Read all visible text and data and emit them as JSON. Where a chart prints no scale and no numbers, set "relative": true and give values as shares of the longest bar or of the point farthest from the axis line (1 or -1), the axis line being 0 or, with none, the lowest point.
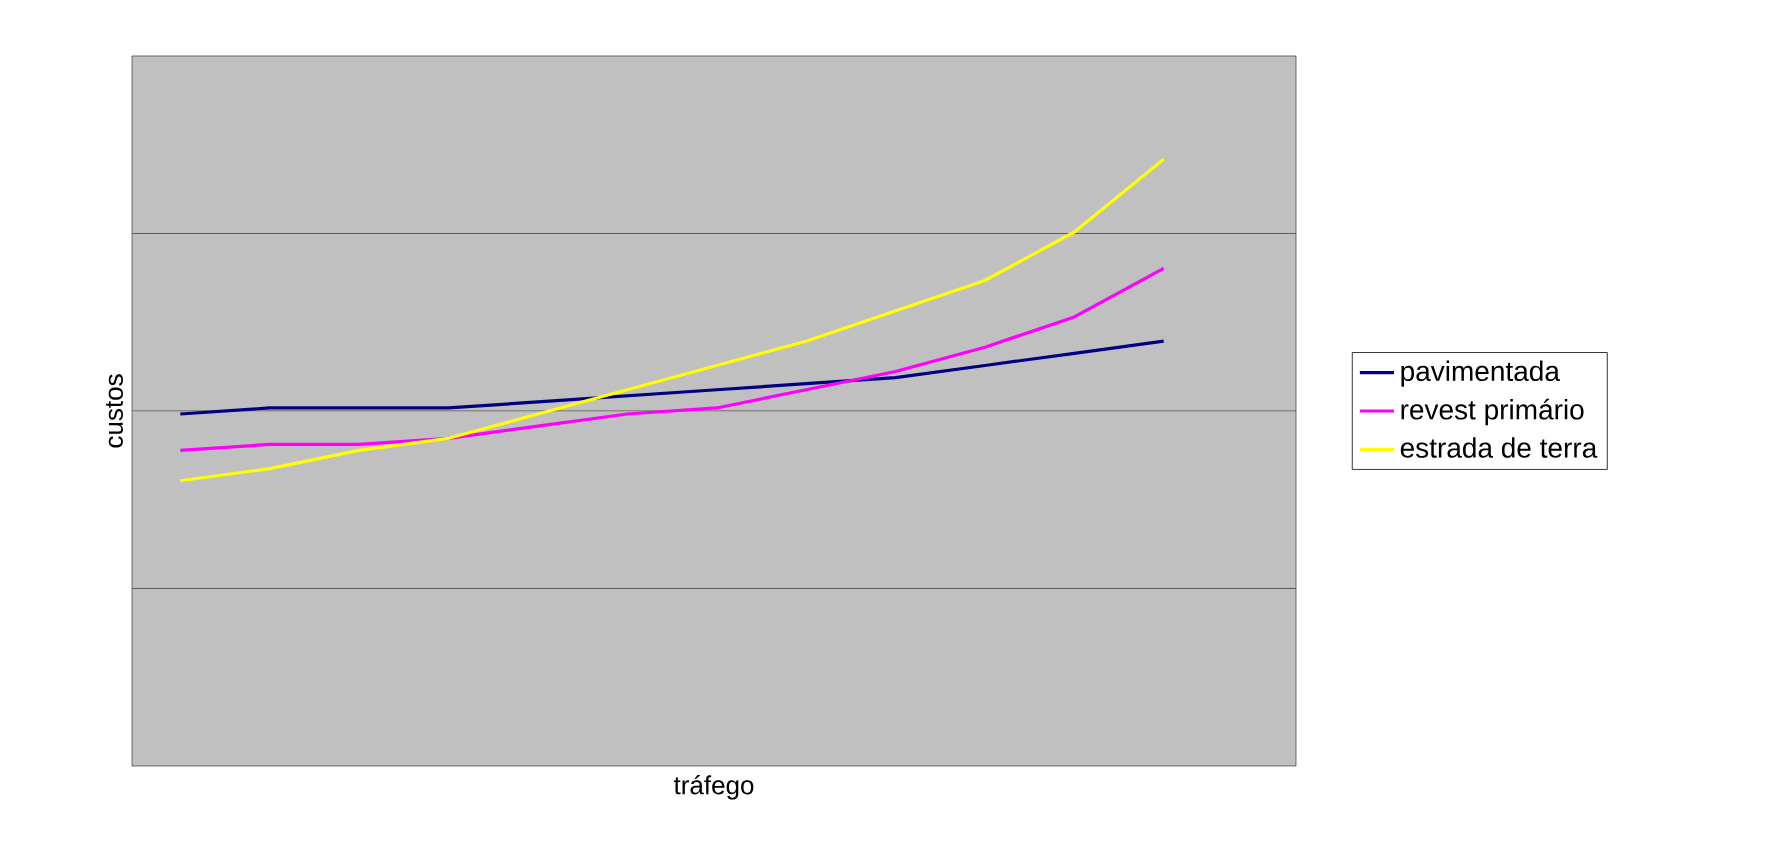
{
  "chart_data": {
    "type": "line",
    "xlabel": "tráfego",
    "ylabel": "custos",
    "relative": true,
    "grid": "y",
    "legend": "right",
    "categories": [
      null,
      null,
      null,
      null,
      null,
      null,
      null,
      null,
      null,
      null,
      null,
      null
    ],
    "series": [
      {
        "name": "pavimentada",
        "color": "#000080",
        "values": [
          0.58,
          0.59,
          0.59,
          0.59,
          0.6,
          0.61,
          0.62,
          0.63,
          0.64,
          0.66,
          0.68,
          0.7
        ]
      },
      {
        "name": "revest primário",
        "color": "#ff00ff",
        "values": [
          0.52,
          0.53,
          0.53,
          0.54,
          0.56,
          0.58,
          0.59,
          0.62,
          0.65,
          0.69,
          0.74,
          0.82
        ]
      },
      {
        "name": "estrada de terra",
        "color": "#ffff00",
        "values": [
          0.47,
          0.49,
          0.52,
          0.54,
          0.58,
          0.62,
          0.66,
          0.7,
          0.75,
          0.8,
          0.88,
          1.0
        ]
      }
    ]
  }
}
